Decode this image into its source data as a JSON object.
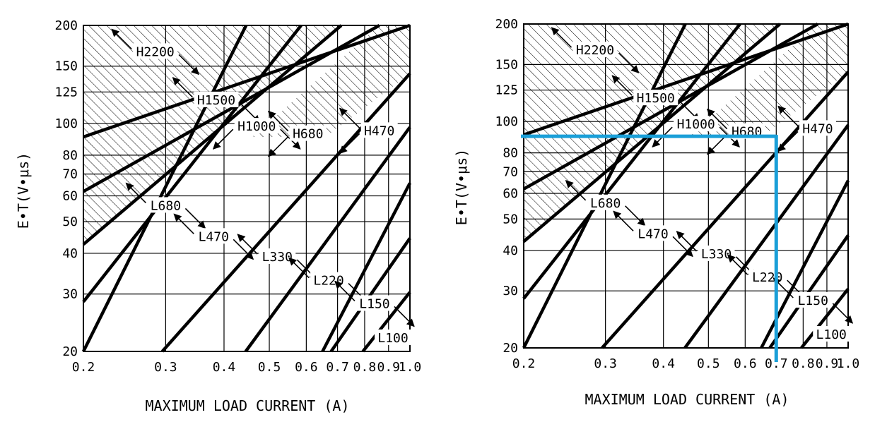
{
  "chart_data": [
    {
      "type": "line",
      "xlabel": "MAXIMUM LOAD CURRENT (A)",
      "ylabel": "E•T(V•μs)",
      "xscale": "log",
      "yscale": "log",
      "xlim": [
        0.2,
        1.0
      ],
      "ylim": [
        20,
        200
      ],
      "x_ticks": [
        0.2,
        0.3,
        0.4,
        0.5,
        0.6,
        0.7,
        0.8,
        0.9,
        1.0
      ],
      "x_tick_labels": [
        "0.2",
        "0.3",
        "0.4",
        "0.5",
        "0.6",
        "0.7",
        "0.8",
        "0.9",
        "1.0"
      ],
      "y_ticks": [
        20,
        30,
        40,
        50,
        60,
        70,
        80,
        100,
        125,
        150,
        200
      ],
      "y_tick_labels": [
        "20",
        "30",
        "40",
        "50",
        "60",
        "70",
        "80",
        "100",
        "125",
        "150",
        "200"
      ],
      "grid": true,
      "boundaries": [
        {
          "x": [
            0.2,
            0.446
          ],
          "y": [
            20,
            200
          ]
        },
        {
          "x": [
            0.2,
            0.585
          ],
          "y": [
            28.4,
            200
          ]
        },
        {
          "x": [
            0.2,
            0.713
          ],
          "y": [
            42.6,
            200
          ]
        },
        {
          "x": [
            0.2,
            0.86
          ],
          "y": [
            61.9,
            200
          ]
        },
        {
          "x": [
            0.2,
            1.0
          ],
          "y": [
            91,
            200
          ]
        },
        {
          "x": [
            0.295,
            1.0
          ],
          "y": [
            20,
            142.3
          ]
        },
        {
          "x": [
            0.445,
            1.0
          ],
          "y": [
            20,
            97.5
          ]
        },
        {
          "x": [
            0.65,
            1.0
          ],
          "y": [
            20,
            65.7
          ]
        },
        {
          "x": [
            0.678,
            1.0
          ],
          "y": [
            20,
            44.5
          ]
        },
        {
          "x": [
            0.793,
            1.0
          ],
          "y": [
            20,
            30.4
          ]
        }
      ],
      "hatched_regions": [
        "H2200",
        "H1500",
        "H1000",
        "H680",
        "H470"
      ],
      "region_labels": [
        {
          "label": "H2200",
          "x": 0.285,
          "y": 166
        },
        {
          "label": "H1500",
          "x": 0.385,
          "y": 118
        },
        {
          "label": "H1000",
          "x": 0.47,
          "y": 98
        },
        {
          "label": "H680",
          "x": 0.605,
          "y": 93
        },
        {
          "label": "H470",
          "x": 0.86,
          "y": 95
        },
        {
          "label": "L680",
          "x": 0.3,
          "y": 56
        },
        {
          "label": "L470",
          "x": 0.38,
          "y": 45
        },
        {
          "label": "L330",
          "x": 0.52,
          "y": 39
        },
        {
          "label": "L220",
          "x": 0.67,
          "y": 33
        },
        {
          "label": "L150",
          "x": 0.84,
          "y": 28
        },
        {
          "label": "L100",
          "x": 0.92,
          "y": 22
        }
      ]
    },
    {
      "type": "line",
      "xlabel": "MAXIMUM LOAD CURRENT (A)",
      "ylabel": "E•T(V•μs)",
      "xscale": "log",
      "yscale": "log",
      "xlim": [
        0.2,
        1.0
      ],
      "ylim": [
        20,
        200
      ],
      "x_ticks": [
        0.2,
        0.3,
        0.4,
        0.5,
        0.6,
        0.7,
        0.8,
        0.9,
        1.0
      ],
      "x_tick_labels": [
        "0.2",
        "0.3",
        "0.4",
        "0.5",
        "0.6",
        "0.7",
        "0.8",
        "0.9",
        "1.0"
      ],
      "y_ticks": [
        20,
        30,
        40,
        50,
        60,
        70,
        80,
        100,
        125,
        150,
        200
      ],
      "y_tick_labels": [
        "20",
        "30",
        "40",
        "50",
        "60",
        "70",
        "80",
        "100",
        "125",
        "150",
        "200"
      ],
      "grid": true,
      "boundaries": [
        {
          "x": [
            0.2,
            0.446
          ],
          "y": [
            20,
            200
          ]
        },
        {
          "x": [
            0.2,
            0.585
          ],
          "y": [
            28.4,
            200
          ]
        },
        {
          "x": [
            0.2,
            0.713
          ],
          "y": [
            42.6,
            200
          ]
        },
        {
          "x": [
            0.2,
            0.86
          ],
          "y": [
            61.9,
            200
          ]
        },
        {
          "x": [
            0.2,
            1.0
          ],
          "y": [
            91,
            200
          ]
        },
        {
          "x": [
            0.295,
            1.0
          ],
          "y": [
            20,
            142.3
          ]
        },
        {
          "x": [
            0.445,
            1.0
          ],
          "y": [
            20,
            97.5
          ]
        },
        {
          "x": [
            0.65,
            1.0
          ],
          "y": [
            20,
            65.7
          ]
        },
        {
          "x": [
            0.678,
            1.0
          ],
          "y": [
            20,
            44.5
          ]
        },
        {
          "x": [
            0.793,
            1.0
          ],
          "y": [
            20,
            30.4
          ]
        }
      ],
      "hatched_regions": [
        "H2200",
        "H1500",
        "H1000",
        "H680",
        "H470"
      ],
      "region_labels": [
        {
          "label": "H2200",
          "x": 0.285,
          "y": 166
        },
        {
          "label": "H1500",
          "x": 0.385,
          "y": 118
        },
        {
          "label": "H1000",
          "x": 0.47,
          "y": 98
        },
        {
          "label": "H680",
          "x": 0.605,
          "y": 93
        },
        {
          "label": "H470",
          "x": 0.86,
          "y": 95
        },
        {
          "label": "L680",
          "x": 0.3,
          "y": 56
        },
        {
          "label": "L470",
          "x": 0.38,
          "y": 45
        },
        {
          "label": "L330",
          "x": 0.52,
          "y": 39
        },
        {
          "label": "L220",
          "x": 0.67,
          "y": 33
        },
        {
          "label": "L150",
          "x": 0.84,
          "y": 28
        },
        {
          "label": "L100",
          "x": 0.92,
          "y": 22
        }
      ],
      "operating_point": {
        "x": 0.7,
        "y": 90,
        "color": "#1a9fd8"
      }
    }
  ]
}
